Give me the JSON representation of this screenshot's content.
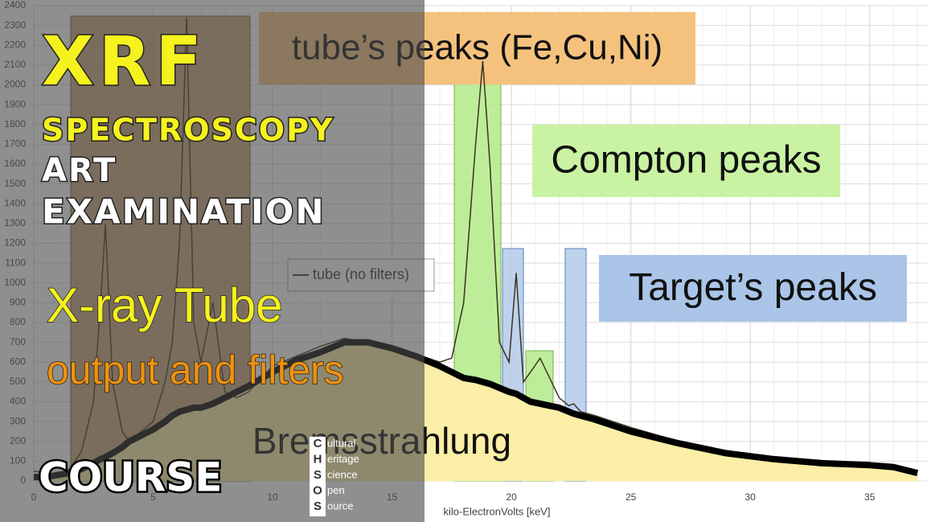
{
  "chart_data": {
    "type": "line",
    "x": [
      0,
      0.5,
      1,
      1.5,
      2,
      2.5,
      2.8,
      3.0,
      3.3,
      3.7,
      4,
      4.5,
      5,
      5.5,
      5.8,
      6.1,
      6.4,
      6.7,
      7,
      7.5,
      8,
      8.5,
      9,
      10,
      11,
      12,
      13,
      14,
      15,
      16,
      17,
      17.5,
      18,
      18.5,
      18.8,
      19.1,
      19.5,
      19.9,
      20.2,
      20.5,
      20.8,
      21.2,
      21.6,
      22,
      22.4,
      22.6,
      22.9,
      23.5,
      25,
      27,
      29,
      31,
      33,
      35,
      36,
      37
    ],
    "series": [
      {
        "name": "tube (no filters)",
        "color": "#3a3320",
        "values": [
          50,
          40,
          30,
          60,
          150,
          400,
          900,
          1300,
          500,
          250,
          200,
          250,
          300,
          500,
          700,
          1200,
          2340,
          800,
          600,
          900,
          450,
          420,
          450,
          580,
          630,
          680,
          720,
          700,
          670,
          640,
          600,
          620,
          900,
          1700,
          2120,
          1600,
          700,
          600,
          1050,
          500,
          550,
          620,
          520,
          420,
          380,
          390,
          350,
          330,
          270,
          200,
          150,
          120,
          90,
          70,
          60,
          40
        ]
      },
      {
        "name": "Bremsstrahlung",
        "color": "#000000",
        "values": [
          20,
          20,
          30,
          40,
          60,
          90,
          110,
          120,
          140,
          170,
          200,
          230,
          260,
          300,
          330,
          350,
          360,
          370,
          370,
          390,
          420,
          450,
          480,
          550,
          610,
          650,
          700,
          700,
          670,
          630,
          580,
          550,
          520,
          510,
          500,
          490,
          470,
          450,
          440,
          420,
          400,
          390,
          380,
          370,
          350,
          340,
          330,
          310,
          250,
          190,
          140,
          110,
          90,
          80,
          70,
          40
        ]
      }
    ],
    "x_label": "kilo-ElectronVolts [keV]",
    "xlim": [
      0,
      37.4
    ],
    "xticks": [
      0,
      5,
      10,
      15,
      20,
      25,
      30,
      35
    ],
    "ylim": [
      0,
      2400
    ],
    "yticks": [
      0,
      100,
      200,
      300,
      400,
      500,
      600,
      700,
      800,
      900,
      1000,
      1100,
      1200,
      1300,
      1400,
      1500,
      1600,
      1700,
      1800,
      1900,
      2000,
      2100,
      2200,
      2300,
      2400
    ],
    "grid": true,
    "annotations": [
      {
        "text": "tube’s peaks (Fe,Cu,Ni)",
        "color": "#f5c27e"
      },
      {
        "text": "Compton peaks",
        "color": "#c9f2a2"
      },
      {
        "text": "Target’s peaks",
        "color": "#aac5e8"
      }
    ]
  },
  "overlay": {
    "title": "XRF",
    "subtitle": "SPECTROSCOPY",
    "lines": [
      "ART",
      "EXAMINATION"
    ],
    "topic": "X-ray Tube",
    "topic_sub": "output and filters",
    "course": "COURSE",
    "logo": {
      "letters": [
        "C",
        "H",
        "S",
        "O",
        "S"
      ],
      "words": [
        "ultural",
        "eritage",
        "cience",
        "pen",
        "ource"
      ]
    }
  }
}
